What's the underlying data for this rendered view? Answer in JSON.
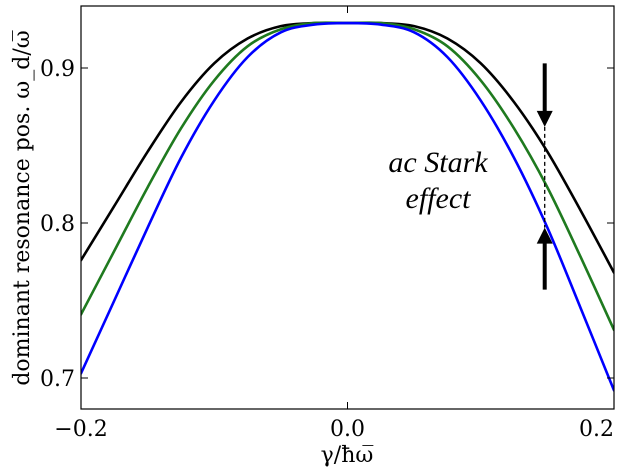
{
  "chart_data": {
    "type": "line",
    "title": "",
    "xlabel": "γ/ħω̅",
    "ylabel": "dominant resonance pos. ω_d/ω̅",
    "xlim": [
      -0.2,
      0.2
    ],
    "ylim": [
      0.68,
      0.94
    ],
    "xticks": [
      {
        "value": -0.2,
        "label": "−0.2"
      },
      {
        "value": 0.0,
        "label": "0.0"
      },
      {
        "value": 0.2,
        "label": "0.2"
      }
    ],
    "yticks": [
      {
        "value": 0.7,
        "label": "0.7"
      },
      {
        "value": 0.8,
        "label": "0.8"
      },
      {
        "value": 0.9,
        "label": "0.9"
      }
    ],
    "grid": false,
    "legend": "none",
    "x": [
      -0.2,
      -0.175,
      -0.15,
      -0.125,
      -0.1,
      -0.075,
      -0.05,
      -0.025,
      0.0,
      0.025,
      0.05,
      0.075,
      0.1,
      0.125,
      0.15,
      0.175,
      0.2
    ],
    "series": [
      {
        "color": "#000000",
        "values": [
          0.776,
          0.811,
          0.846,
          0.878,
          0.903,
          0.919,
          0.927,
          0.929,
          0.929,
          0.929,
          0.927,
          0.919,
          0.903,
          0.878,
          0.846,
          0.808,
          0.768
        ]
      },
      {
        "color": "#1f7a1f",
        "values": [
          0.741,
          0.782,
          0.823,
          0.861,
          0.892,
          0.914,
          0.925,
          0.929,
          0.929,
          0.929,
          0.925,
          0.914,
          0.892,
          0.861,
          0.823,
          0.778,
          0.731
        ]
      },
      {
        "color": "#0000ff",
        "values": [
          0.703,
          0.75,
          0.797,
          0.842,
          0.879,
          0.907,
          0.923,
          0.928,
          0.929,
          0.928,
          0.923,
          0.907,
          0.879,
          0.842,
          0.797,
          0.745,
          0.692
        ]
      }
    ],
    "annotation": {
      "line1": "ac Stark",
      "line2": "effect",
      "marker_x": 0.148,
      "marker_top": 0.862,
      "marker_bottom": 0.797,
      "arrow_top_from": 0.903,
      "arrow_bottom_from": 0.757
    }
  }
}
